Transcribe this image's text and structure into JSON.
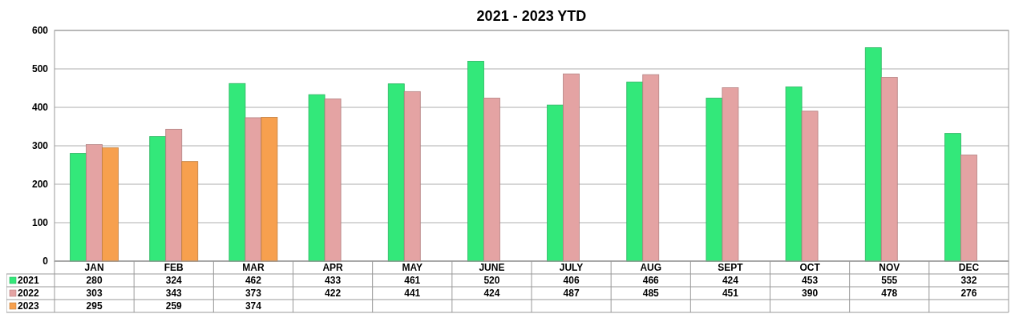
{
  "chart_data": {
    "type": "bar",
    "title": "2021 - 2023 YTD",
    "categories": [
      "JAN",
      "FEB",
      "MAR",
      "APR",
      "MAY",
      "JUNE",
      "JULY",
      "AUG",
      "SEPT",
      "OCT",
      "NOV",
      "DEC"
    ],
    "series": [
      {
        "name": "2021",
        "color": "#33e87a",
        "values": [
          280,
          324,
          462,
          433,
          461,
          520,
          406,
          466,
          424,
          453,
          555,
          332
        ]
      },
      {
        "name": "2022",
        "color": "#e4a3a3",
        "values": [
          303,
          343,
          373,
          422,
          441,
          424,
          487,
          485,
          451,
          390,
          478,
          276
        ]
      },
      {
        "name": "2023",
        "color": "#f7a04e",
        "values": [
          295,
          259,
          374,
          null,
          null,
          null,
          null,
          null,
          null,
          null,
          null,
          null
        ]
      }
    ],
    "ylim": [
      0,
      600
    ],
    "yticks": [
      0,
      100,
      200,
      300,
      400,
      500,
      600
    ],
    "grid": "y",
    "legend": "bottom",
    "data_labels": true
  }
}
